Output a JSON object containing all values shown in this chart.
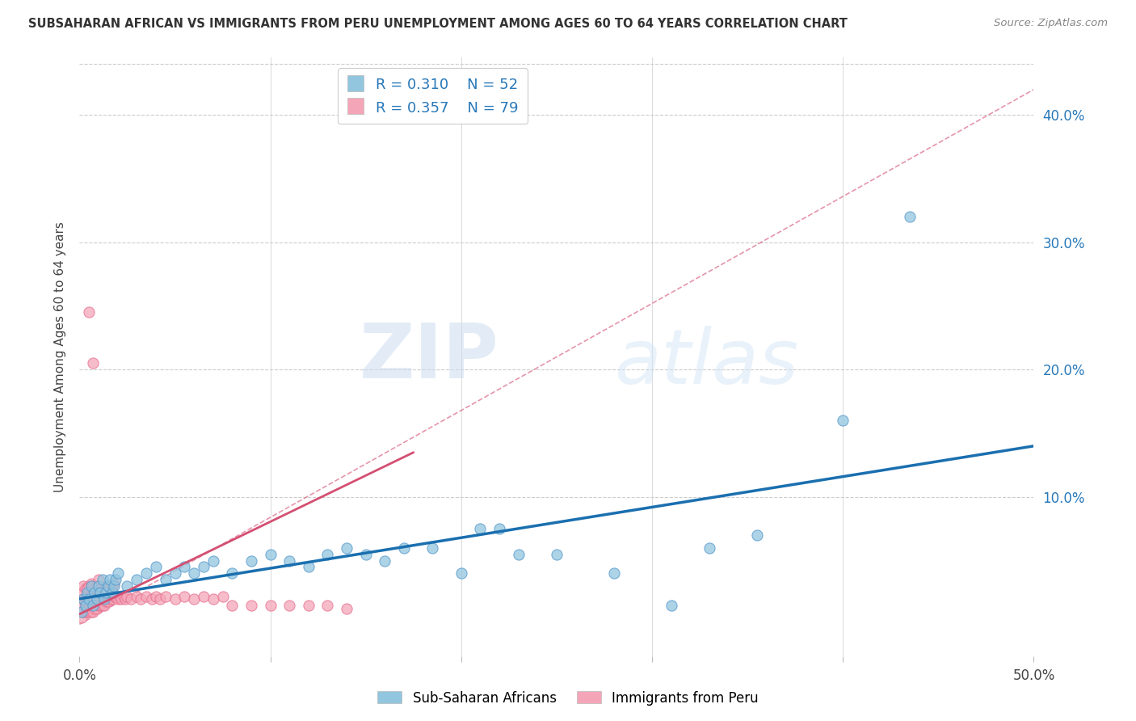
{
  "title": "SUBSAHARAN AFRICAN VS IMMIGRANTS FROM PERU UNEMPLOYMENT AMONG AGES 60 TO 64 YEARS CORRELATION CHART",
  "source": "Source: ZipAtlas.com",
  "ylabel": "Unemployment Among Ages 60 to 64 years",
  "xlim": [
    0.0,
    0.5
  ],
  "ylim": [
    -0.025,
    0.445
  ],
  "yticks_right": [
    0.1,
    0.2,
    0.3,
    0.4
  ],
  "color_blue": "#92c5de",
  "color_pink": "#f4a6b8",
  "line_color_blue": "#1a6faf",
  "line_color_pink": "#d44f72",
  "R_blue": 0.31,
  "N_blue": 52,
  "R_pink": 0.357,
  "N_pink": 79,
  "legend_label_blue": "Sub-Saharan Africans",
  "legend_label_pink": "Immigrants from Peru",
  "watermark_zip": "ZIP",
  "watermark_atlas": "atlas",
  "blue_scatter_x": [
    0.001,
    0.002,
    0.003,
    0.004,
    0.005,
    0.006,
    0.007,
    0.008,
    0.009,
    0.01,
    0.011,
    0.012,
    0.013,
    0.014,
    0.015,
    0.016,
    0.017,
    0.018,
    0.019,
    0.02,
    0.025,
    0.03,
    0.035,
    0.04,
    0.045,
    0.05,
    0.055,
    0.06,
    0.065,
    0.07,
    0.08,
    0.09,
    0.1,
    0.11,
    0.12,
    0.13,
    0.14,
    0.15,
    0.16,
    0.17,
    0.185,
    0.2,
    0.21,
    0.22,
    0.23,
    0.25,
    0.28,
    0.31,
    0.33,
    0.355,
    0.4,
    0.435
  ],
  "blue_scatter_y": [
    0.01,
    0.02,
    0.015,
    0.025,
    0.02,
    0.03,
    0.015,
    0.025,
    0.02,
    0.03,
    0.025,
    0.035,
    0.02,
    0.025,
    0.03,
    0.035,
    0.025,
    0.03,
    0.035,
    0.04,
    0.03,
    0.035,
    0.04,
    0.045,
    0.035,
    0.04,
    0.045,
    0.04,
    0.045,
    0.05,
    0.04,
    0.05,
    0.055,
    0.05,
    0.045,
    0.055,
    0.06,
    0.055,
    0.05,
    0.06,
    0.06,
    0.04,
    0.075,
    0.075,
    0.055,
    0.055,
    0.04,
    0.015,
    0.06,
    0.07,
    0.16,
    0.32
  ],
  "pink_scatter_x": [
    0.001,
    0.001,
    0.001,
    0.002,
    0.002,
    0.002,
    0.003,
    0.003,
    0.003,
    0.003,
    0.004,
    0.004,
    0.004,
    0.005,
    0.005,
    0.005,
    0.005,
    0.006,
    0.006,
    0.006,
    0.006,
    0.007,
    0.007,
    0.007,
    0.008,
    0.008,
    0.008,
    0.009,
    0.009,
    0.009,
    0.01,
    0.01,
    0.01,
    0.011,
    0.011,
    0.012,
    0.012,
    0.013,
    0.013,
    0.014,
    0.014,
    0.015,
    0.015,
    0.016,
    0.016,
    0.017,
    0.017,
    0.018,
    0.018,
    0.019,
    0.02,
    0.021,
    0.022,
    0.023,
    0.024,
    0.025,
    0.027,
    0.03,
    0.032,
    0.035,
    0.038,
    0.04,
    0.042,
    0.045,
    0.05,
    0.055,
    0.06,
    0.065,
    0.07,
    0.075,
    0.08,
    0.09,
    0.1,
    0.11,
    0.12,
    0.13,
    0.14,
    0.005,
    0.007
  ],
  "pink_scatter_y": [
    0.005,
    0.015,
    0.025,
    0.01,
    0.02,
    0.03,
    0.01,
    0.015,
    0.02,
    0.028,
    0.01,
    0.018,
    0.028,
    0.01,
    0.015,
    0.022,
    0.03,
    0.01,
    0.015,
    0.022,
    0.032,
    0.01,
    0.02,
    0.03,
    0.012,
    0.02,
    0.028,
    0.012,
    0.02,
    0.028,
    0.015,
    0.022,
    0.035,
    0.015,
    0.025,
    0.015,
    0.025,
    0.015,
    0.025,
    0.018,
    0.028,
    0.018,
    0.03,
    0.02,
    0.03,
    0.02,
    0.03,
    0.022,
    0.032,
    0.022,
    0.02,
    0.022,
    0.02,
    0.022,
    0.02,
    0.022,
    0.02,
    0.022,
    0.02,
    0.022,
    0.02,
    0.022,
    0.02,
    0.022,
    0.02,
    0.022,
    0.02,
    0.022,
    0.02,
    0.022,
    0.015,
    0.015,
    0.015,
    0.015,
    0.015,
    0.015,
    0.012,
    0.245,
    0.205
  ],
  "blue_trend_x": [
    0.0,
    0.5
  ],
  "blue_trend_y": [
    0.02,
    0.14
  ],
  "pink_solid_trend_x": [
    0.0,
    0.175
  ],
  "pink_solid_trend_y": [
    0.008,
    0.135
  ],
  "pink_dash_trend_x": [
    0.0,
    0.5
  ],
  "pink_dash_trend_y": [
    0.0,
    0.42
  ]
}
